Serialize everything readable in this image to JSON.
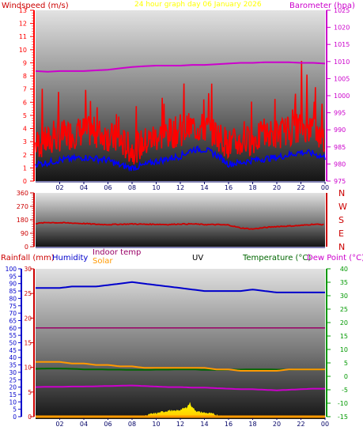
{
  "header": {
    "title": "24 hour graph day   06 January 2026",
    "left_label": "Windspeed (m/s)",
    "right_label": "Barometer (hpa)"
  },
  "colors": {
    "title": "#ffff00",
    "windspeed": "#ff0000",
    "windspeed_avg": "#0000ff",
    "barometer": "#cc00cc",
    "direction": "#cc0000",
    "direction_axis": "#cc0000",
    "rainfall": "#cc0000",
    "humidity": "#0000cc",
    "indoor_temp": "#990066",
    "solar": "#ff9900",
    "uv": "#000000",
    "temperature": "#006600",
    "dew_point": "#cc00cc",
    "temp_axis": "#009900"
  },
  "legend": {
    "rainfall": "Rainfall (mm)",
    "humidity": "Humidity",
    "indoor_temp": "Indoor temp",
    "solar": "Solar",
    "uv": "UV",
    "temperature": "Temperature (°C)",
    "dew_point": "Dew Point (°C)"
  },
  "chart_data": [
    {
      "type": "line",
      "x_ticks": [
        "02",
        "04",
        "06",
        "08",
        "10",
        "12",
        "14",
        "16",
        "18",
        "20",
        "22",
        "00"
      ],
      "xlim_hours": [
        0,
        24
      ],
      "left_axis": {
        "label": "Windspeed (m/s)",
        "ylim": [
          0,
          13
        ],
        "ticks": [
          0,
          1,
          2,
          3,
          4,
          5,
          6,
          7,
          8,
          9,
          10,
          11,
          12,
          13
        ]
      },
      "right_axis": {
        "label": "Barometer (hpa)",
        "ylim": [
          975,
          1025
        ],
        "ticks": [
          975,
          980,
          985,
          990,
          995,
          1000,
          1005,
          1010,
          1015,
          1020,
          1025
        ]
      },
      "series": [
        {
          "name": "Windspeed (m/s)",
          "axis": "left",
          "kind": "gust",
          "hours": [
            0,
            1,
            2,
            3,
            4,
            5,
            6,
            7,
            8,
            9,
            10,
            11,
            12,
            13,
            14,
            15,
            16,
            17,
            18,
            19,
            20,
            21,
            22,
            23,
            24
          ],
          "values": [
            2.8,
            3.0,
            3.4,
            3.6,
            3.8,
            3.7,
            3.4,
            3.0,
            2.4,
            2.9,
            3.4,
            3.6,
            3.8,
            4.1,
            4.0,
            3.6,
            2.8,
            2.9,
            3.2,
            3.4,
            3.6,
            3.8,
            4.2,
            4.0,
            3.0
          ],
          "peaks": [
            6.5,
            7.7,
            7.3,
            7.2,
            8.6,
            7.5,
            7.0,
            6.0,
            5.8,
            6.8,
            7.4,
            6.7,
            8.0,
            7.5,
            8.2,
            7.0,
            6.3,
            6.8,
            7.0,
            7.3,
            6.5,
            7.5,
            9.4,
            8.8,
            6.0
          ]
        },
        {
          "name": "Windspeed average",
          "axis": "left",
          "kind": "average",
          "hours": [
            0,
            1,
            2,
            3,
            4,
            5,
            6,
            7,
            8,
            9,
            10,
            11,
            12,
            13,
            14,
            15,
            16,
            17,
            18,
            19,
            20,
            21,
            22,
            23,
            24
          ],
          "values": [
            1.3,
            1.4,
            1.6,
            1.7,
            1.8,
            1.7,
            1.6,
            1.2,
            1.0,
            1.2,
            1.5,
            1.7,
            1.9,
            2.4,
            2.4,
            2.0,
            1.3,
            1.4,
            1.6,
            1.7,
            1.8,
            2.0,
            2.2,
            2.1,
            1.8
          ]
        },
        {
          "name": "Barometer (hpa)",
          "axis": "right",
          "kind": "line",
          "hours": [
            0,
            1,
            2,
            3,
            4,
            5,
            6,
            7,
            8,
            9,
            10,
            11,
            12,
            13,
            14,
            15,
            16,
            17,
            18,
            19,
            20,
            21,
            22,
            23,
            24
          ],
          "values": [
            1007.2,
            1007.0,
            1007.2,
            1007.2,
            1007.2,
            1007.4,
            1007.6,
            1008.0,
            1008.4,
            1008.6,
            1008.8,
            1008.8,
            1008.8,
            1009.0,
            1009.0,
            1009.2,
            1009.4,
            1009.6,
            1009.6,
            1009.8,
            1009.8,
            1009.8,
            1009.6,
            1009.6,
            1009.4
          ]
        }
      ]
    },
    {
      "type": "line",
      "x_ticks": [
        "02",
        "04",
        "06",
        "08",
        "10",
        "12",
        "14",
        "16",
        "18",
        "20",
        "22",
        "00"
      ],
      "xlim_hours": [
        0,
        24
      ],
      "left_axis": {
        "label": "",
        "ylim": [
          0,
          360
        ],
        "ticks": [
          0,
          90,
          180,
          270,
          360
        ]
      },
      "compass": [
        "N",
        "W",
        "S",
        "E",
        "N"
      ],
      "series": [
        {
          "name": "Wind direction",
          "axis": "left",
          "hours": [
            0,
            1,
            2,
            3,
            4,
            5,
            6,
            7,
            8,
            9,
            10,
            11,
            12,
            13,
            14,
            15,
            16,
            17,
            18,
            19,
            20,
            21,
            22,
            23,
            24
          ],
          "values": [
            155,
            162,
            160,
            158,
            155,
            150,
            148,
            150,
            152,
            150,
            150,
            148,
            152,
            152,
            148,
            148,
            145,
            125,
            118,
            128,
            135,
            138,
            142,
            150,
            148
          ]
        }
      ]
    },
    {
      "type": "line",
      "x_ticks": [
        "02",
        "04",
        "06",
        "08",
        "10",
        "12",
        "14",
        "16",
        "18",
        "20",
        "22",
        "00"
      ],
      "xlim_hours": [
        0,
        24
      ],
      "axes": {
        "humidity": {
          "ylim": [
            0,
            100
          ],
          "ticks": [
            0,
            5,
            10,
            15,
            20,
            25,
            30,
            35,
            40,
            45,
            50,
            55,
            60,
            65,
            70,
            75,
            80,
            85,
            90,
            95,
            100
          ]
        },
        "rainfall": {
          "ylim": [
            0,
            30
          ],
          "ticks": [
            0,
            5,
            10,
            15,
            20,
            25,
            30
          ]
        },
        "temperature": {
          "ylim": [
            -15,
            40
          ],
          "ticks": [
            -15,
            -10,
            -5,
            0,
            5,
            10,
            15,
            20,
            25,
            30,
            35,
            40
          ]
        }
      },
      "series": [
        {
          "name": "Humidity",
          "axis": "humidity",
          "hours": [
            0,
            1,
            2,
            3,
            4,
            5,
            6,
            7,
            8,
            9,
            10,
            11,
            12,
            13,
            14,
            15,
            16,
            17,
            18,
            19,
            20,
            21,
            22,
            23,
            24
          ],
          "values": [
            87,
            87,
            87,
            88,
            88,
            88,
            89,
            90,
            91,
            90,
            89,
            88,
            87,
            86,
            85,
            85,
            85,
            85,
            86,
            85,
            84,
            84,
            84,
            84,
            84
          ]
        },
        {
          "name": "Indoor temp",
          "axis": "temperature",
          "hours": [
            0,
            4,
            8,
            12,
            16,
            20,
            24
          ],
          "values": [
            18,
            18,
            18,
            18,
            18,
            18,
            18
          ]
        },
        {
          "name": "Solar",
          "axis": "humidity",
          "hours": [
            0,
            1,
            2,
            3,
            4,
            5,
            6,
            7,
            8,
            9,
            10,
            11,
            12,
            13,
            14,
            15,
            16,
            17,
            18,
            19,
            20,
            21,
            22,
            23,
            24
          ],
          "values": [
            37,
            37,
            37,
            36,
            36,
            35,
            35,
            34,
            34,
            33,
            33,
            33,
            33,
            33,
            33,
            32,
            32,
            31,
            31,
            31,
            31,
            32,
            32,
            32,
            32
          ]
        },
        {
          "name": "Temperature (°C)",
          "axis": "temperature",
          "hours": [
            0,
            1,
            2,
            3,
            4,
            5,
            6,
            7,
            8,
            9,
            10,
            11,
            12,
            13,
            14,
            15,
            16,
            17,
            18,
            19,
            20,
            21,
            22,
            23,
            24
          ],
          "values": [
            2.8,
            2.9,
            2.9,
            2.8,
            2.6,
            2.6,
            2.5,
            2.5,
            2.4,
            2.4,
            2.5,
            2.5,
            2.6,
            2.6,
            2.4,
            2.4,
            2.5,
            2.5,
            2.6,
            2.6,
            2.5,
            2.5,
            2.6,
            2.6,
            2.5
          ]
        },
        {
          "name": "Dew Point (°C)",
          "axis": "temperature",
          "hours": [
            0,
            1,
            2,
            3,
            4,
            5,
            6,
            7,
            8,
            9,
            10,
            11,
            12,
            13,
            14,
            15,
            16,
            17,
            18,
            19,
            20,
            21,
            22,
            23,
            24
          ],
          "values": [
            -4.0,
            -3.9,
            -3.9,
            -3.8,
            -3.8,
            -3.7,
            -3.6,
            -3.5,
            -3.4,
            -3.6,
            -3.8,
            -4.0,
            -4.0,
            -4.2,
            -4.2,
            -4.4,
            -4.6,
            -4.8,
            -4.8,
            -5.0,
            -5.2,
            -5.0,
            -4.8,
            -4.6,
            -4.6
          ]
        },
        {
          "name": "Rainfall (mm)",
          "axis": "rainfall",
          "hours": [
            0,
            24
          ],
          "values": [
            0,
            0
          ]
        },
        {
          "name": "Solar radiation",
          "axis": "humidity",
          "kind": "area",
          "hours": [
            9.0,
            9.5,
            10.0,
            10.5,
            11.0,
            11.5,
            12.0,
            12.5,
            12.8,
            13.0,
            13.2,
            13.5,
            14.0,
            14.5,
            15.0,
            15.5
          ],
          "values": [
            0,
            1.5,
            2.0,
            3.0,
            4.0,
            3.5,
            4.5,
            6.0,
            9.0,
            6.0,
            4.5,
            3.0,
            2.5,
            2.0,
            1.0,
            0
          ]
        }
      ]
    }
  ]
}
